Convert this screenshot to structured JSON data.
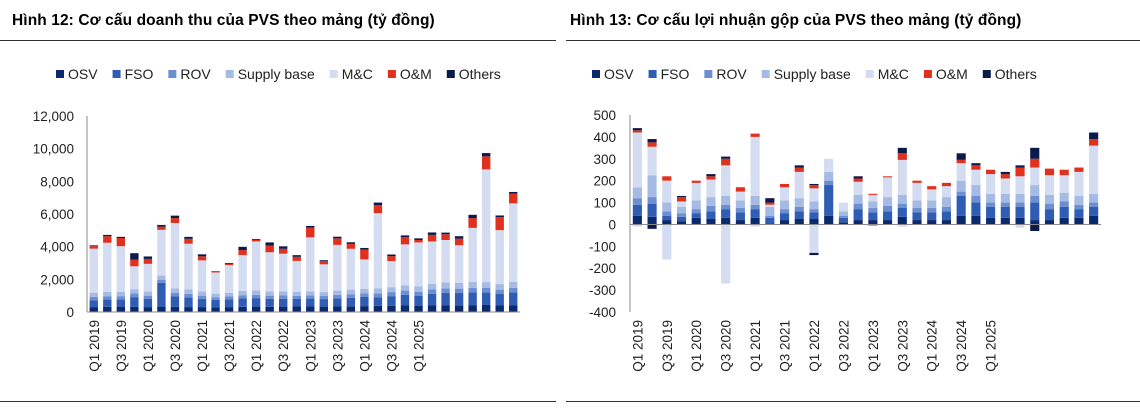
{
  "chart_data": [
    {
      "type": "bar",
      "stacked": true,
      "title": "Hình 12: Cơ cấu doanh thu của PVS theo mảng (tỷ đồng)",
      "series": [
        {
          "name": "OSV",
          "color": "#0b2a6e"
        },
        {
          "name": "FSO",
          "color": "#2f5db3"
        },
        {
          "name": "ROV",
          "color": "#6d8ed0"
        },
        {
          "name": "Supply base",
          "color": "#a6bbe3"
        },
        {
          "name": "M&C",
          "color": "#d3dcf0"
        },
        {
          "name": "O&M",
          "color": "#e0301e"
        },
        {
          "name": "Others",
          "color": "#0a1a4a"
        }
      ],
      "ylim": [
        0,
        12000
      ],
      "yticks": [
        "0",
        "2,000",
        "4,000",
        "6,000",
        "8,000",
        "10,000",
        "12,000"
      ],
      "x_labels": [
        "Q1 2019",
        "Q3 2019",
        "Q1 2020",
        "Q3 2020",
        "Q1 2021",
        "Q3 2021",
        "Q1 2022",
        "Q3 2022",
        "Q1 2023",
        "Q3 2023",
        "Q1 2024",
        "Q3 2024",
        "Q1 2025"
      ],
      "data": [
        [
          300,
          420,
          200,
          260,
          2700,
          150,
          50
        ],
        [
          320,
          440,
          210,
          270,
          3000,
          400,
          80
        ],
        [
          330,
          430,
          210,
          260,
          2800,
          500,
          70
        ],
        [
          310,
          600,
          220,
          270,
          1400,
          400,
          400
        ],
        [
          300,
          500,
          200,
          250,
          1700,
          300,
          150
        ],
        [
          330,
          1450,
          200,
          250,
          2800,
          200,
          100
        ],
        [
          320,
          630,
          230,
          270,
          4000,
          300,
          150
        ],
        [
          300,
          600,
          210,
          270,
          2800,
          300,
          120
        ],
        [
          300,
          500,
          200,
          260,
          1900,
          250,
          120
        ],
        [
          280,
          460,
          150,
          230,
          1300,
          50,
          30
        ],
        [
          300,
          470,
          180,
          220,
          1700,
          80,
          50
        ],
        [
          320,
          520,
          190,
          260,
          2200,
          300,
          200
        ],
        [
          330,
          520,
          200,
          270,
          3000,
          100,
          50
        ],
        [
          320,
          480,
          200,
          260,
          2400,
          400,
          200
        ],
        [
          330,
          480,
          200,
          260,
          2300,
          300,
          150
        ],
        [
          340,
          460,
          190,
          240,
          1900,
          250,
          100
        ],
        [
          340,
          480,
          200,
          250,
          3300,
          600,
          100
        ],
        [
          330,
          460,
          190,
          240,
          1700,
          200,
          50
        ],
        [
          340,
          500,
          210,
          260,
          2800,
          400,
          100
        ],
        [
          350,
          520,
          220,
          280,
          2500,
          300,
          100
        ],
        [
          360,
          560,
          220,
          280,
          1800,
          600,
          100
        ],
        [
          380,
          520,
          240,
          310,
          4600,
          500,
          150
        ],
        [
          370,
          600,
          250,
          300,
          1600,
          300,
          100
        ],
        [
          400,
          650,
          260,
          330,
          2500,
          450,
          100
        ],
        [
          390,
          610,
          240,
          320,
          2700,
          150,
          100
        ],
        [
          420,
          700,
          260,
          340,
          2600,
          400,
          150
        ],
        [
          420,
          750,
          280,
          360,
          2600,
          350,
          100
        ],
        [
          410,
          750,
          270,
          360,
          2300,
          400,
          150
        ],
        [
          420,
          780,
          280,
          370,
          3300,
          600,
          200
        ],
        [
          430,
          760,
          280,
          360,
          6900,
          800,
          200
        ],
        [
          400,
          700,
          270,
          340,
          3300,
          800,
          100
        ],
        [
          420,
          780,
          280,
          370,
          4800,
          600,
          100
        ]
      ],
      "xlabel": "",
      "ylabel": ""
    },
    {
      "type": "bar",
      "stacked": true,
      "title": "Hình 13: Cơ cấu lợi nhuận gộp của PVS theo mảng (tỷ đồng)",
      "series": [
        {
          "name": "OSV",
          "color": "#0b2a6e"
        },
        {
          "name": "FSO",
          "color": "#2f5db3"
        },
        {
          "name": "ROV",
          "color": "#6d8ed0"
        },
        {
          "name": "Supply base",
          "color": "#a6bbe3"
        },
        {
          "name": "M&C",
          "color": "#d3dcf0"
        },
        {
          "name": "O&M",
          "color": "#e0301e"
        },
        {
          "name": "Others",
          "color": "#0a1a4a"
        }
      ],
      "ylim": [
        -400,
        500
      ],
      "yticks": [
        "-400",
        "-300",
        "-200",
        "-100",
        "0",
        "100",
        "200",
        "300",
        "400",
        "500"
      ],
      "x_labels": [
        "Q1 2019",
        "Q3 2019",
        "Q1 2020",
        "Q3 2020",
        "Q1 2021",
        "Q3 2021",
        "Q1 2022",
        "Q3 2022",
        "Q1 2023",
        "Q3 2023",
        "Q1 2024",
        "Q3 2024",
        "Q1 2025"
      ],
      "data": [
        [
          40,
          50,
          30,
          50,
          250,
          10,
          10
        ],
        [
          35,
          60,
          30,
          100,
          130,
          20,
          15
        ],
        [
          20,
          20,
          20,
          40,
          100,
          20,
          -20
        ],
        [
          15,
          20,
          15,
          30,
          25,
          20,
          5
        ],
        [
          30,
          20,
          20,
          40,
          80,
          10,
          0
        ],
        [
          25,
          35,
          25,
          40,
          80,
          15,
          10
        ],
        [
          30,
          40,
          20,
          40,
          140,
          30,
          10
        ],
        [
          20,
          35,
          20,
          35,
          40,
          20,
          0
        ],
        [
          30,
          40,
          20,
          40,
          270,
          15,
          0
        ],
        [
          5,
          25,
          10,
          40,
          10,
          10,
          20
        ],
        [
          20,
          30,
          20,
          40,
          60,
          15,
          0
        ],
        [
          25,
          35,
          20,
          40,
          120,
          20,
          10
        ],
        [
          25,
          30,
          15,
          35,
          60,
          15,
          5
        ],
        [
          40,
          140,
          20,
          40,
          60,
          0,
          0
        ],
        [
          10,
          20,
          10,
          20,
          40,
          -10,
          0
        ],
        [
          20,
          50,
          25,
          40,
          60,
          15,
          10
        ],
        [
          20,
          35,
          20,
          30,
          30,
          5,
          0
        ],
        [
          20,
          40,
          25,
          40,
          90,
          5,
          0
        ],
        [
          35,
          40,
          20,
          40,
          160,
          30,
          25
        ],
        [
          20,
          35,
          20,
          35,
          80,
          10,
          0
        ],
        [
          20,
          35,
          20,
          35,
          50,
          15,
          0
        ],
        [
          20,
          40,
          20,
          45,
          50,
          15,
          0
        ],
        [
          40,
          90,
          20,
          50,
          80,
          15,
          30
        ],
        [
          40,
          60,
          30,
          50,
          70,
          20,
          10
        ],
        [
          30,
          50,
          20,
          40,
          90,
          20,
          0
        ],
        [
          30,
          50,
          20,
          40,
          70,
          20,
          10
        ],
        [
          30,
          50,
          20,
          40,
          80,
          40,
          10
        ],
        [
          20,
          80,
          30,
          50,
          80,
          40,
          50
        ],
        [
          20,
          50,
          25,
          40,
          90,
          30,
          0
        ],
        [
          30,
          50,
          25,
          40,
          80,
          25,
          0
        ],
        [
          30,
          40,
          20,
          40,
          110,
          20,
          0
        ],
        [
          40,
          40,
          20,
          40,
          220,
          30,
          30
        ]
      ],
      "neg_data": [
        [
          0,
          0,
          0,
          0,
          -10,
          0,
          0
        ],
        [
          0,
          0,
          0,
          0,
          0,
          0,
          -20
        ],
        [
          0,
          0,
          0,
          0,
          -160,
          0,
          0
        ],
        [
          0,
          0,
          0,
          0,
          0,
          0,
          0
        ],
        [
          0,
          0,
          0,
          0,
          0,
          0,
          0
        ],
        [
          0,
          0,
          0,
          0,
          0,
          0,
          0
        ],
        [
          0,
          0,
          0,
          0,
          -270,
          0,
          0
        ],
        [
          0,
          0,
          0,
          0,
          0,
          0,
          0
        ],
        [
          0,
          0,
          0,
          0,
          -10,
          0,
          0
        ],
        [
          0,
          0,
          0,
          0,
          0,
          0,
          0
        ],
        [
          0,
          0,
          0,
          0,
          0,
          0,
          0
        ],
        [
          0,
          0,
          0,
          0,
          0,
          0,
          0
        ],
        [
          0,
          0,
          0,
          0,
          -130,
          0,
          -10
        ],
        [
          0,
          0,
          0,
          0,
          0,
          0,
          0
        ],
        [
          0,
          0,
          0,
          0,
          0,
          0,
          0
        ],
        [
          0,
          0,
          0,
          0,
          0,
          0,
          0
        ],
        [
          0,
          0,
          0,
          0,
          0,
          -5,
          0
        ],
        [
          0,
          0,
          0,
          0,
          0,
          0,
          0
        ],
        [
          0,
          0,
          0,
          0,
          -10,
          0,
          0
        ],
        [
          0,
          0,
          0,
          0,
          0,
          0,
          0
        ],
        [
          0,
          0,
          0,
          0,
          0,
          0,
          0
        ],
        [
          0,
          0,
          0,
          0,
          0,
          0,
          0
        ],
        [
          0,
          0,
          0,
          0,
          0,
          0,
          0
        ],
        [
          0,
          0,
          0,
          0,
          0,
          0,
          0
        ],
        [
          0,
          0,
          0,
          0,
          0,
          0,
          0
        ],
        [
          0,
          0,
          0,
          0,
          0,
          0,
          0
        ],
        [
          0,
          0,
          0,
          0,
          -15,
          0,
          0
        ],
        [
          0,
          0,
          0,
          0,
          0,
          0,
          -30
        ],
        [
          0,
          0,
          0,
          0,
          0,
          0,
          0
        ],
        [
          0,
          0,
          0,
          0,
          0,
          0,
          0
        ],
        [
          0,
          0,
          0,
          0,
          0,
          0,
          0
        ],
        [
          0,
          0,
          0,
          0,
          0,
          0,
          0
        ]
      ],
      "xlabel": "",
      "ylabel": ""
    }
  ]
}
